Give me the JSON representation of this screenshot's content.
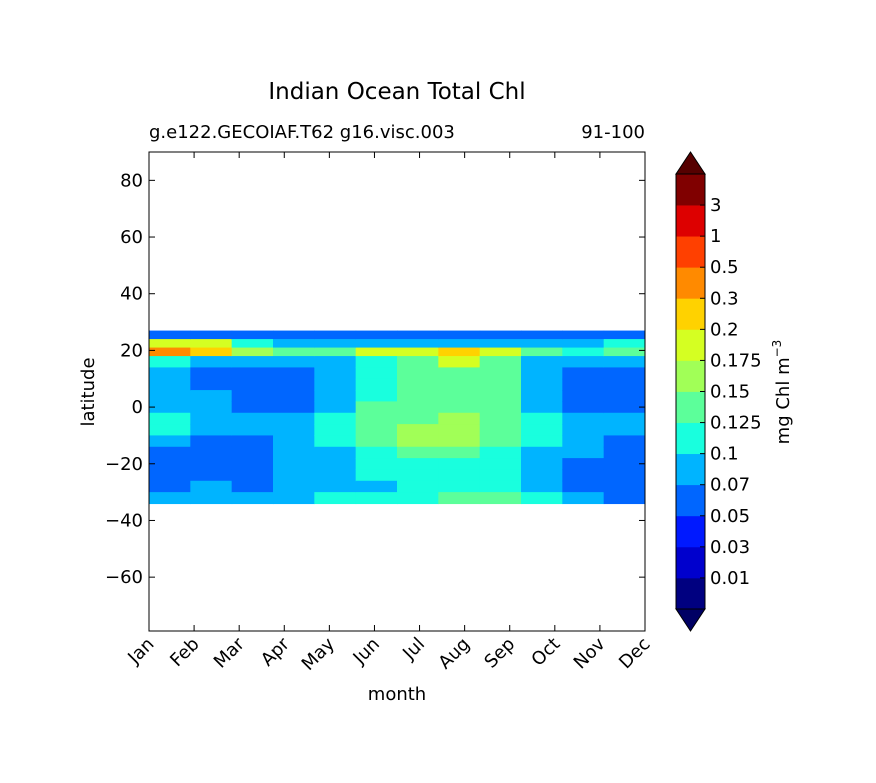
{
  "chart_data": {
    "type": "filled-contour",
    "title": "Indian Ocean Total Chl",
    "subtitle_left": "g.e122.GECOIAF.T62 g16.visc.003",
    "subtitle_right": "91-100",
    "xlabel": "month",
    "ylabel": "latitude",
    "x_ticks": [
      "Jan",
      "Feb",
      "Mar",
      "Apr",
      "May",
      "Jun",
      "Jul",
      "Aug",
      "Sep",
      "Oct",
      "Nov",
      "Dec"
    ],
    "y_ticks": [
      80,
      60,
      40,
      20,
      0,
      -20,
      -40,
      -60
    ],
    "ylim": [
      -79,
      90
    ],
    "data_lat_range": [
      -34,
      27
    ],
    "colorbar": {
      "label": "mg Chl m",
      "label_superscript": "−3",
      "tick_labels": [
        "0.01",
        "0.03",
        "0.05",
        "0.07",
        "0.1",
        "0.125",
        "0.15",
        "0.175",
        "0.2",
        "0.3",
        "0.5",
        "1",
        "3"
      ],
      "level_colors": [
        "#000080",
        "#0000cd",
        "#0019ff",
        "#0066ff",
        "#00b4ff",
        "#19ffde",
        "#5cff9a",
        "#a1ff57",
        "#d5ff22",
        "#ffd200",
        "#ff8a00",
        "#ff4000",
        "#dd0000",
        "#800000"
      ],
      "under_color": "#000064",
      "over_color": "#560000",
      "extend": "both"
    },
    "field_lat_bands": [
      27,
      24,
      21,
      18,
      14,
      10,
      6,
      2,
      -2,
      -6,
      -10,
      -14,
      -18,
      -22,
      -26,
      -30,
      -34
    ],
    "field_levels_by_month": [
      [
        3,
        8,
        10,
        5,
        4,
        4,
        4,
        4,
        5,
        5,
        4,
        3,
        3,
        3,
        3,
        4,
        3
      ],
      [
        3,
        8,
        9,
        4,
        3,
        3,
        4,
        4,
        4,
        4,
        3,
        3,
        3,
        3,
        4,
        4,
        4
      ],
      [
        3,
        5,
        7,
        4,
        3,
        3,
        3,
        3,
        4,
        4,
        3,
        3,
        3,
        3,
        3,
        4,
        4
      ],
      [
        3,
        4,
        6,
        4,
        3,
        3,
        3,
        3,
        4,
        4,
        4,
        4,
        4,
        4,
        4,
        4,
        4
      ],
      [
        3,
        4,
        6,
        4,
        4,
        4,
        4,
        4,
        5,
        5,
        5,
        4,
        4,
        4,
        4,
        5,
        4
      ],
      [
        3,
        4,
        8,
        5,
        5,
        5,
        5,
        6,
        6,
        6,
        6,
        5,
        5,
        5,
        4,
        5,
        4
      ],
      [
        3,
        4,
        8,
        6,
        6,
        6,
        6,
        6,
        6,
        7,
        7,
        6,
        5,
        5,
        5,
        5,
        5
      ],
      [
        3,
        4,
        9,
        8,
        6,
        6,
        6,
        6,
        7,
        7,
        7,
        6,
        5,
        5,
        5,
        6,
        6
      ],
      [
        3,
        4,
        8,
        6,
        6,
        6,
        6,
        6,
        6,
        6,
        6,
        5,
        5,
        5,
        5,
        6,
        8
      ],
      [
        3,
        4,
        6,
        4,
        4,
        4,
        4,
        4,
        5,
        5,
        5,
        4,
        4,
        4,
        4,
        5,
        6
      ],
      [
        3,
        4,
        5,
        4,
        3,
        3,
        3,
        3,
        4,
        4,
        4,
        4,
        3,
        3,
        3,
        4,
        4
      ],
      [
        3,
        5,
        6,
        4,
        3,
        3,
        3,
        3,
        4,
        4,
        3,
        3,
        3,
        3,
        3,
        3,
        3
      ]
    ]
  }
}
